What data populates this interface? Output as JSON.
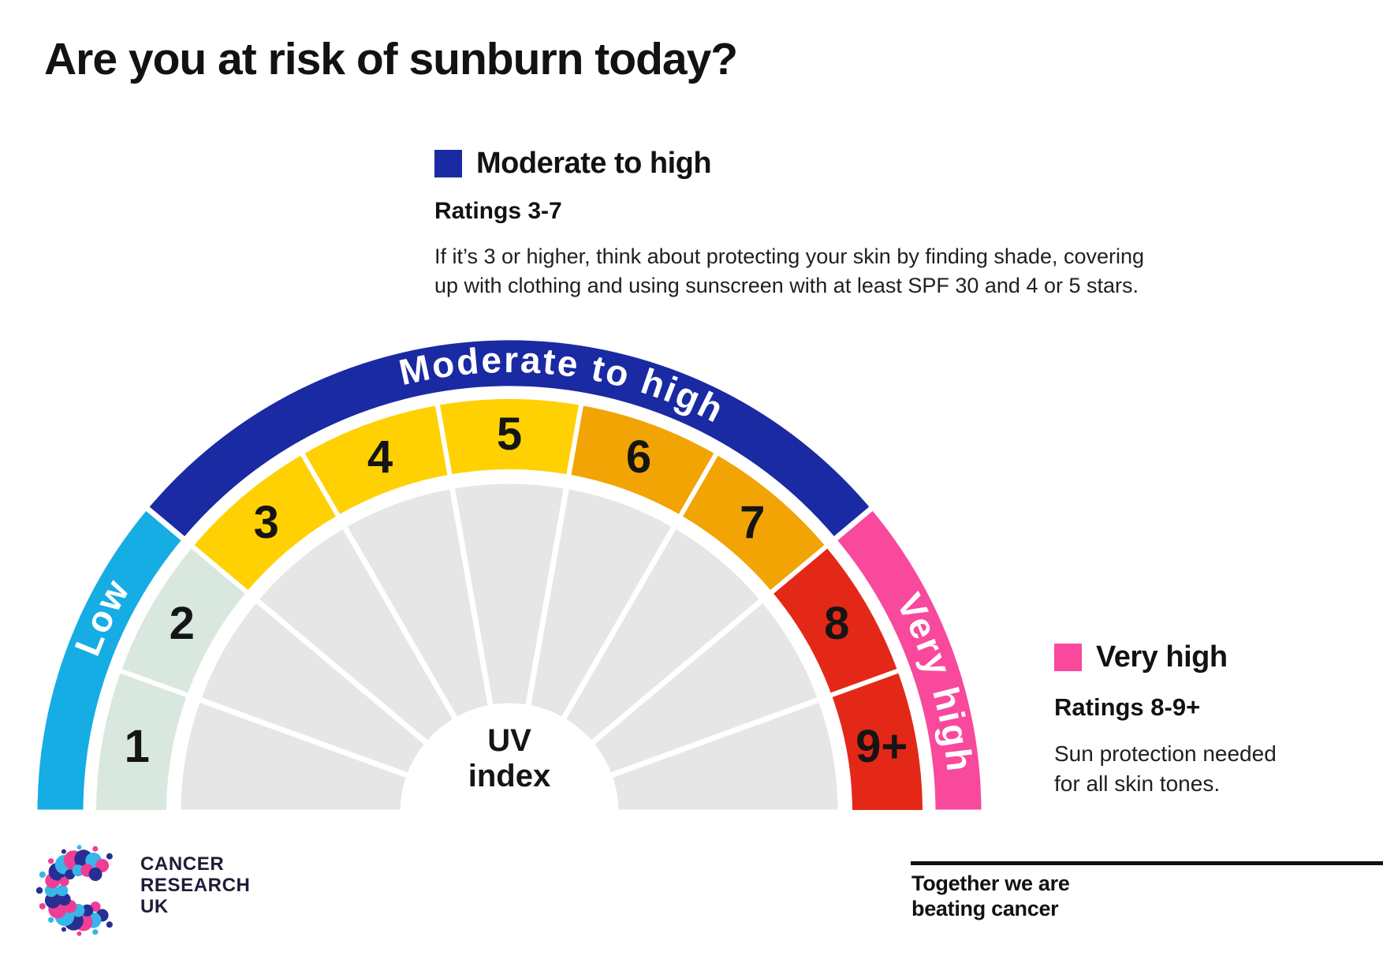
{
  "header": {
    "title": "Are you at risk of sunburn today?"
  },
  "legend_moderate": {
    "swatch_color": "#1a2aa3",
    "label": "Moderate to high",
    "ratings": "Ratings 3-7",
    "description_line1": "If it’s 3 or higher, think about protecting your skin by finding shade, covering",
    "description_line2": "up with clothing and using sunscreen with at least SPF 30 and 4 or 5 stars."
  },
  "legend_very_high": {
    "swatch_color": "#f8499c",
    "label": "Very high",
    "ratings": "Ratings 8-9+",
    "description_line1": "Sun protection needed",
    "description_line2": "for all skin tones."
  },
  "chart_data": {
    "type": "gauge",
    "title": "UV index",
    "center_label_line1": "UV",
    "center_label_line2": "index",
    "wedge_color": "#e6e6e6",
    "number_color": "#151515",
    "divider_color": "#ffffff",
    "segments": [
      {
        "label": "1",
        "band": "Low",
        "color": "#d8e8de"
      },
      {
        "label": "2",
        "band": "Low",
        "color": "#d8e8de"
      },
      {
        "label": "3",
        "band": "Moderate to high",
        "color": "#ffd103"
      },
      {
        "label": "4",
        "band": "Moderate to high",
        "color": "#ffd103"
      },
      {
        "label": "5",
        "band": "Moderate to high",
        "color": "#ffd103"
      },
      {
        "label": "6",
        "band": "Moderate to high",
        "color": "#f2a405"
      },
      {
        "label": "7",
        "band": "Moderate to high",
        "color": "#f2a405"
      },
      {
        "label": "8",
        "band": "Very high",
        "color": "#e42817"
      },
      {
        "label": "9+",
        "band": "Very high",
        "color": "#e42817"
      }
    ],
    "bands": [
      {
        "label": "Low",
        "ratings": "1-2",
        "color": "#15ade4",
        "seg_span": [
          0,
          2
        ]
      },
      {
        "label": "Moderate to high",
        "ratings": "3-7",
        "color": "#1a2aa3",
        "seg_span": [
          2,
          7
        ]
      },
      {
        "label": "Very high",
        "ratings": "8-9+",
        "color": "#f8499c",
        "seg_span": [
          7,
          9
        ]
      }
    ]
  },
  "footer": {
    "logo_line1": "CANCER",
    "logo_line2": "RESEARCH",
    "logo_line3": "UK",
    "tagline_line1": "Together we are",
    "tagline_line2": "beating cancer"
  }
}
